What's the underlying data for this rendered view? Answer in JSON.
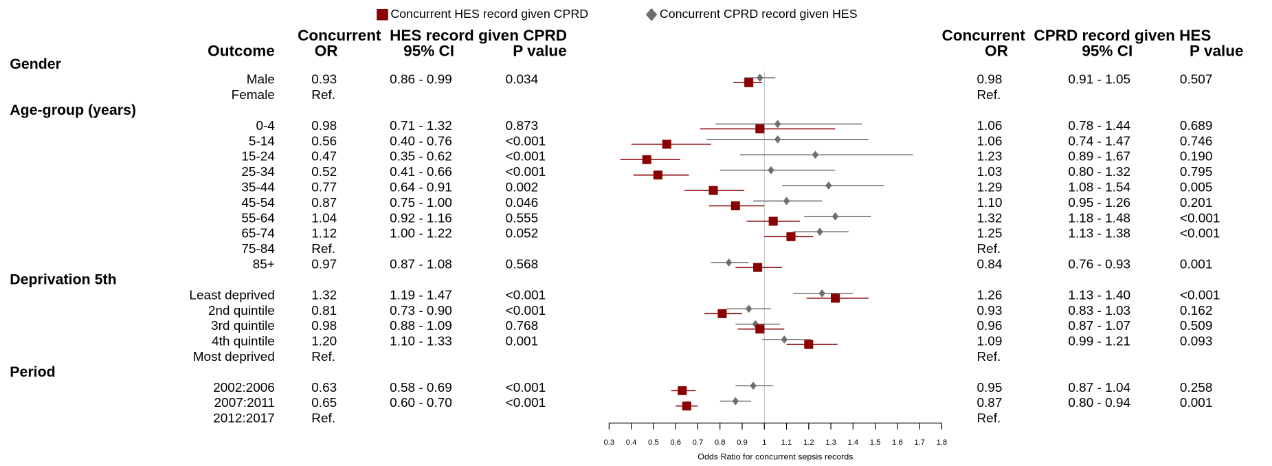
{
  "chart_data": {
    "type": "forest",
    "series": [
      {
        "name": "Concurrent HES record given CPRD",
        "color": "#8b0000",
        "marker": "square"
      },
      {
        "name": "Concurrent CPRD record given HES",
        "color": "#6e6e6e",
        "marker": "diamond"
      }
    ],
    "group_titles": [
      "Concurrent  HES record given CPRD",
      "Concurrent  CPRD record given HES"
    ],
    "column_headers": {
      "label": "Outcome",
      "or": "OR",
      "ci": "95% CI",
      "p": "P value"
    },
    "xlabel": "Odds Ratio for concurrent sepsis records",
    "xlim": [
      0.3,
      1.8
    ],
    "xticks": [
      0.3,
      0.4,
      0.5,
      0.6,
      0.7,
      0.8,
      0.9,
      1,
      1.1,
      1.2,
      1.3,
      1.4,
      1.5,
      1.6,
      1.7,
      1.8
    ],
    "reference_line": 1,
    "rows": [
      {
        "group": "Gender"
      },
      {
        "label": "Male",
        "stats": [
          {
            "or": 0.93,
            "lo": 0.86,
            "hi": 0.99,
            "ci": "0.86 - 0.99",
            "p": "0.034"
          },
          {
            "or": 0.98,
            "lo": 0.91,
            "hi": 1.05,
            "ci": "0.91 - 1.05",
            "p": "0.507"
          }
        ]
      },
      {
        "label": "Female",
        "stats": [
          {
            "ref": "Ref."
          },
          {
            "ref": "Ref."
          }
        ]
      },
      {
        "group": "Age-group (years)"
      },
      {
        "label": "0-4",
        "stats": [
          {
            "or": 0.98,
            "lo": 0.71,
            "hi": 1.32,
            "ci": "0.71 - 1.32",
            "p": "0.873"
          },
          {
            "or": 1.06,
            "lo": 0.78,
            "hi": 1.44,
            "ci": "0.78 - 1.44",
            "p": "0.689"
          }
        ]
      },
      {
        "label": "5-14",
        "stats": [
          {
            "or": 0.56,
            "lo": 0.4,
            "hi": 0.76,
            "ci": "0.40 - 0.76",
            "p": "<0.001"
          },
          {
            "or": 1.06,
            "lo": 0.74,
            "hi": 1.47,
            "ci": "0.74 - 1.47",
            "p": "0.746"
          }
        ]
      },
      {
        "label": "15-24",
        "stats": [
          {
            "or": 0.47,
            "lo": 0.35,
            "hi": 0.62,
            "ci": "0.35 - 0.62",
            "p": "<0.001"
          },
          {
            "or": 1.23,
            "lo": 0.89,
            "hi": 1.67,
            "ci": "0.89 - 1.67",
            "p": "0.190"
          }
        ]
      },
      {
        "label": "25-34",
        "stats": [
          {
            "or": 0.52,
            "lo": 0.41,
            "hi": 0.66,
            "ci": "0.41 - 0.66",
            "p": "<0.001"
          },
          {
            "or": 1.03,
            "lo": 0.8,
            "hi": 1.32,
            "ci": "0.80 - 1.32",
            "p": "0.795"
          }
        ]
      },
      {
        "label": "35-44",
        "stats": [
          {
            "or": 0.77,
            "lo": 0.64,
            "hi": 0.91,
            "ci": "0.64 - 0.91",
            "p": "0.002"
          },
          {
            "or": 1.29,
            "lo": 1.08,
            "hi": 1.54,
            "ci": "1.08 - 1.54",
            "p": "0.005"
          }
        ]
      },
      {
        "label": "45-54",
        "stats": [
          {
            "or": 0.87,
            "lo": 0.75,
            "hi": 1.0,
            "ci": "0.75 - 1.00",
            "p": "0.046"
          },
          {
            "or": 1.1,
            "or_label": "1.10",
            "lo": 0.95,
            "hi": 1.26,
            "ci": "0.95 - 1.26",
            "p": "0.201"
          }
        ]
      },
      {
        "label": "55-64",
        "stats": [
          {
            "or": 1.04,
            "lo": 0.92,
            "hi": 1.16,
            "ci": "0.92 - 1.16",
            "p": "0.555"
          },
          {
            "or": 1.32,
            "lo": 1.18,
            "hi": 1.48,
            "ci": "1.18 - 1.48",
            "p": "<0.001"
          }
        ]
      },
      {
        "label": "65-74",
        "stats": [
          {
            "or": 1.12,
            "lo": 1.0,
            "hi": 1.22,
            "ci": "1.00 - 1.22",
            "p": "0.052"
          },
          {
            "or": 1.25,
            "lo": 1.13,
            "hi": 1.38,
            "ci": "1.13 - 1.38",
            "p": "<0.001"
          }
        ]
      },
      {
        "label": "75-84",
        "stats": [
          {
            "ref": "Ref."
          },
          {
            "ref": "Ref."
          }
        ]
      },
      {
        "label": "85+",
        "stats": [
          {
            "or": 0.97,
            "lo": 0.87,
            "hi": 1.08,
            "ci": "0.87 - 1.08",
            "p": "0.568"
          },
          {
            "or": 0.84,
            "lo": 0.76,
            "hi": 0.93,
            "ci": "0.76 - 0.93",
            "p": "0.001"
          }
        ]
      },
      {
        "group": "Deprivation 5th"
      },
      {
        "label": "Least deprived",
        "stats": [
          {
            "or": 1.32,
            "lo": 1.19,
            "hi": 1.47,
            "ci": "1.19 - 1.47",
            "p": "<0.001"
          },
          {
            "or": 1.26,
            "lo": 1.13,
            "hi": 1.4,
            "ci": "1.13 - 1.40",
            "p": "<0.001"
          }
        ]
      },
      {
        "label": "2nd quintile",
        "stats": [
          {
            "or": 0.81,
            "lo": 0.73,
            "hi": 0.9,
            "ci": "0.73 - 0.90",
            "p": "<0.001"
          },
          {
            "or": 0.93,
            "lo": 0.83,
            "hi": 1.03,
            "ci": "0.83 - 1.03",
            "p": "0.162"
          }
        ]
      },
      {
        "label": "3rd quintile",
        "stats": [
          {
            "or": 0.98,
            "lo": 0.88,
            "hi": 1.09,
            "ci": "0.88 - 1.09",
            "p": "0.768"
          },
          {
            "or": 0.96,
            "lo": 0.87,
            "hi": 1.07,
            "ci": "0.87 - 1.07",
            "p": "0.509"
          }
        ]
      },
      {
        "label": "4th quintile",
        "stats": [
          {
            "or": 1.2,
            "or_label": "1.20",
            "lo": 1.1,
            "hi": 1.33,
            "ci": "1.10 - 1.33",
            "p": "0.001"
          },
          {
            "or": 1.09,
            "lo": 0.99,
            "hi": 1.21,
            "ci": "0.99 - 1.21",
            "p": "0.093"
          }
        ]
      },
      {
        "label": "Most deprived",
        "stats": [
          {
            "ref": "Ref."
          },
          {
            "ref": "Ref."
          }
        ]
      },
      {
        "group": "Period"
      },
      {
        "label": "2002:2006",
        "stats": [
          {
            "or": 0.63,
            "lo": 0.58,
            "hi": 0.69,
            "ci": "0.58 - 0.69",
            "p": "<0.001"
          },
          {
            "or": 0.95,
            "lo": 0.87,
            "hi": 1.04,
            "ci": "0.87 - 1.04",
            "p": "0.258"
          }
        ]
      },
      {
        "label": "2007:2011",
        "stats": [
          {
            "or": 0.65,
            "lo": 0.6,
            "hi": 0.7,
            "ci": "0.60 - 0.70",
            "p": "<0.001"
          },
          {
            "or": 0.87,
            "lo": 0.8,
            "hi": 0.94,
            "ci": "0.80 - 0.94",
            "p": "0.001"
          }
        ]
      },
      {
        "label": "2012:2017",
        "stats": [
          {
            "ref": "Ref."
          },
          {
            "ref": "Ref."
          }
        ]
      }
    ]
  }
}
